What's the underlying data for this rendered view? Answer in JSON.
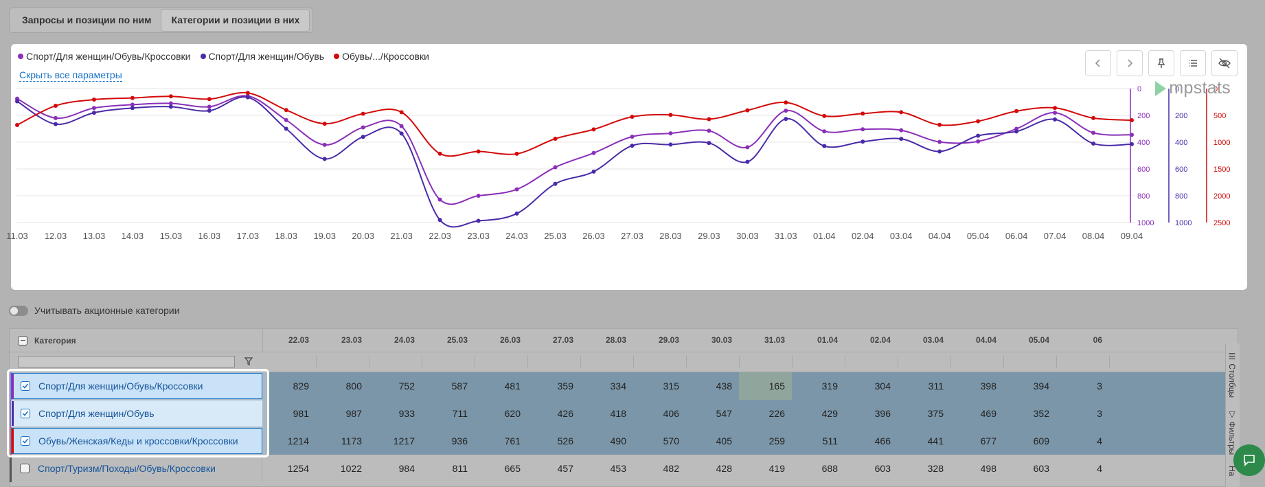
{
  "tabs": [
    {
      "label": "Запросы и позиции по ним",
      "active": false
    },
    {
      "label": "Категории и позиции в них",
      "active": true
    }
  ],
  "legend": [
    {
      "label": "Спорт/Для женщин/Обувь/Кроссовки",
      "color": "#8a2fb8"
    },
    {
      "label": "Спорт/Для женщин/Обувь",
      "color": "#4a2aa8"
    },
    {
      "label": "Обувь/.../Кроссовки",
      "color": "#d40a0a"
    }
  ],
  "hide_params_label": "Скрыть все параметры",
  "logo_text": "mpstats",
  "toolbar_icons": [
    "chevron-left-icon",
    "chevron-right-icon",
    "pin-icon",
    "list-icon",
    "eye-off-icon"
  ],
  "chart_data": {
    "type": "line",
    "x": [
      "11.03",
      "12.03",
      "13.03",
      "14.03",
      "15.03",
      "16.03",
      "17.03",
      "18.03",
      "19.03",
      "20.03",
      "21.03",
      "22.03",
      "23.03",
      "24.03",
      "25.03",
      "26.03",
      "27.03",
      "28.03",
      "29.03",
      "30.03",
      "31.03",
      "01.04",
      "02.04",
      "03.04",
      "04.04",
      "05.04",
      "06.04",
      "07.04",
      "08.04",
      "09.04"
    ],
    "axes": [
      {
        "ticks": [
          0,
          200,
          400,
          600,
          800,
          1000
        ],
        "range": [
          0,
          1000
        ],
        "color": "#8a2fb8",
        "reversed": true
      },
      {
        "ticks": [
          0,
          200,
          400,
          600,
          800,
          1000
        ],
        "range": [
          0,
          1000
        ],
        "color": "#4a2aa8",
        "reversed": true
      },
      {
        "ticks": [
          0,
          500,
          1000,
          1500,
          2000,
          2500
        ],
        "range": [
          0,
          2500
        ],
        "color": "#d40a0a",
        "reversed": true
      }
    ],
    "series": [
      {
        "name": "Спорт/Для женщин/Обувь/Кроссовки",
        "color": "#8a2fb8",
        "axis": 0,
        "values": [
          75,
          220,
          145,
          120,
          110,
          135,
          55,
          235,
          420,
          290,
          280,
          829,
          800,
          752,
          587,
          481,
          359,
          334,
          315,
          438,
          165,
          319,
          304,
          311,
          398,
          394,
          300,
          180,
          330,
          345
        ]
      },
      {
        "name": "Спорт/Для женщин/Обувь",
        "color": "#4a2aa8",
        "axis": 1,
        "values": [
          95,
          265,
          180,
          145,
          135,
          165,
          65,
          300,
          525,
          360,
          335,
          981,
          987,
          933,
          711,
          620,
          426,
          418,
          406,
          547,
          226,
          429,
          396,
          375,
          469,
          352,
          320,
          230,
          410,
          415
        ]
      },
      {
        "name": "Обувь/.../Кроссовки",
        "color": "#d40a0a",
        "axis": 2,
        "values": [
          680,
          320,
          205,
          175,
          145,
          195,
          80,
          400,
          655,
          470,
          440,
          1214,
          1173,
          1217,
          936,
          761,
          526,
          490,
          570,
          405,
          259,
          511,
          466,
          441,
          677,
          609,
          420,
          360,
          550,
          590
        ]
      }
    ],
    "grid": true,
    "legend_position": "top-left"
  },
  "toggle_label": "Учитывать акционные категории",
  "table": {
    "category_header": "Категория",
    "dates": [
      "22.03",
      "23.03",
      "24.03",
      "25.03",
      "26.03",
      "27.03",
      "28.03",
      "29.03",
      "30.03",
      "31.03",
      "01.04",
      "02.04",
      "03.04",
      "04.04",
      "05.04",
      "06"
    ],
    "rows": [
      {
        "label": "Спорт/Для женщин/Обувь/Кроссовки",
        "color": "#8a2fb8",
        "checked": true,
        "values": [
          "829",
          "800",
          "752",
          "587",
          "481",
          "359",
          "334",
          "315",
          "438",
          "165",
          "319",
          "304",
          "311",
          "398",
          "394",
          "3"
        ]
      },
      {
        "label": "Спорт/Для женщин/Обувь",
        "color": "#4a2aa8",
        "checked": true,
        "values": [
          "981",
          "987",
          "933",
          "711",
          "620",
          "426",
          "418",
          "406",
          "547",
          "226",
          "429",
          "396",
          "375",
          "469",
          "352",
          "3"
        ]
      },
      {
        "label": "Обувь/Женская/Кеды и кроссовки/Кроссовки",
        "color": "#d40a0a",
        "checked": true,
        "values": [
          "1214",
          "1173",
          "1217",
          "936",
          "761",
          "526",
          "490",
          "570",
          "405",
          "259",
          "511",
          "466",
          "441",
          "677",
          "609",
          "4"
        ]
      },
      {
        "label": "Спорт/Туризм/Походы/Обувь/Кроссовки",
        "color": "#555555",
        "checked": false,
        "values": [
          "1254",
          "1022",
          "984",
          "811",
          "665",
          "457",
          "453",
          "482",
          "428",
          "419",
          "688",
          "603",
          "328",
          "498",
          "603",
          "4"
        ]
      }
    ]
  },
  "side_tabs": [
    "Столбцы",
    "Фильтры",
    "На"
  ]
}
